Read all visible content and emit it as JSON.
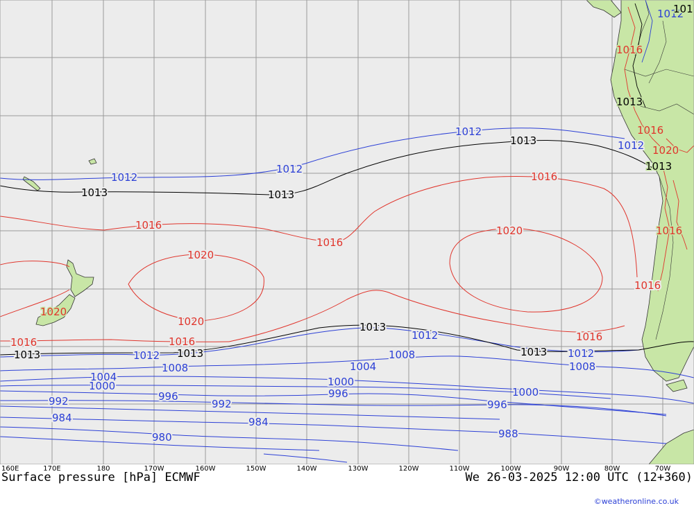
{
  "map": {
    "title": "Surface pressure [hPa] ECMWF",
    "valid_time": "We 26-03-2025 12:00 UTC (12+360)",
    "credit": "©weatheronline.co.uk",
    "longitude_labels": [
      "160E",
      "170E",
      "180",
      "170W",
      "160W",
      "150W",
      "140W",
      "130W",
      "120W",
      "110W",
      "100W",
      "90W",
      "80W",
      "70W"
    ],
    "isobar_labels": {
      "l980": "980",
      "l984": "984",
      "l988": "988",
      "l992": "992",
      "l996": "996",
      "l1000": "1000",
      "l1004": "1004",
      "l1008": "1008",
      "l1012": "1012",
      "l1013": "1013",
      "l1016": "1016",
      "l1020": "1020"
    },
    "colors": {
      "ocean": "#ececec",
      "land": "#c8e6a6",
      "grid": "#9a9a9a",
      "low_isobar": "#2b3fd6",
      "mid_isobar": "#000000",
      "high_isobar": "#e0342b",
      "border": "#333333"
    }
  }
}
